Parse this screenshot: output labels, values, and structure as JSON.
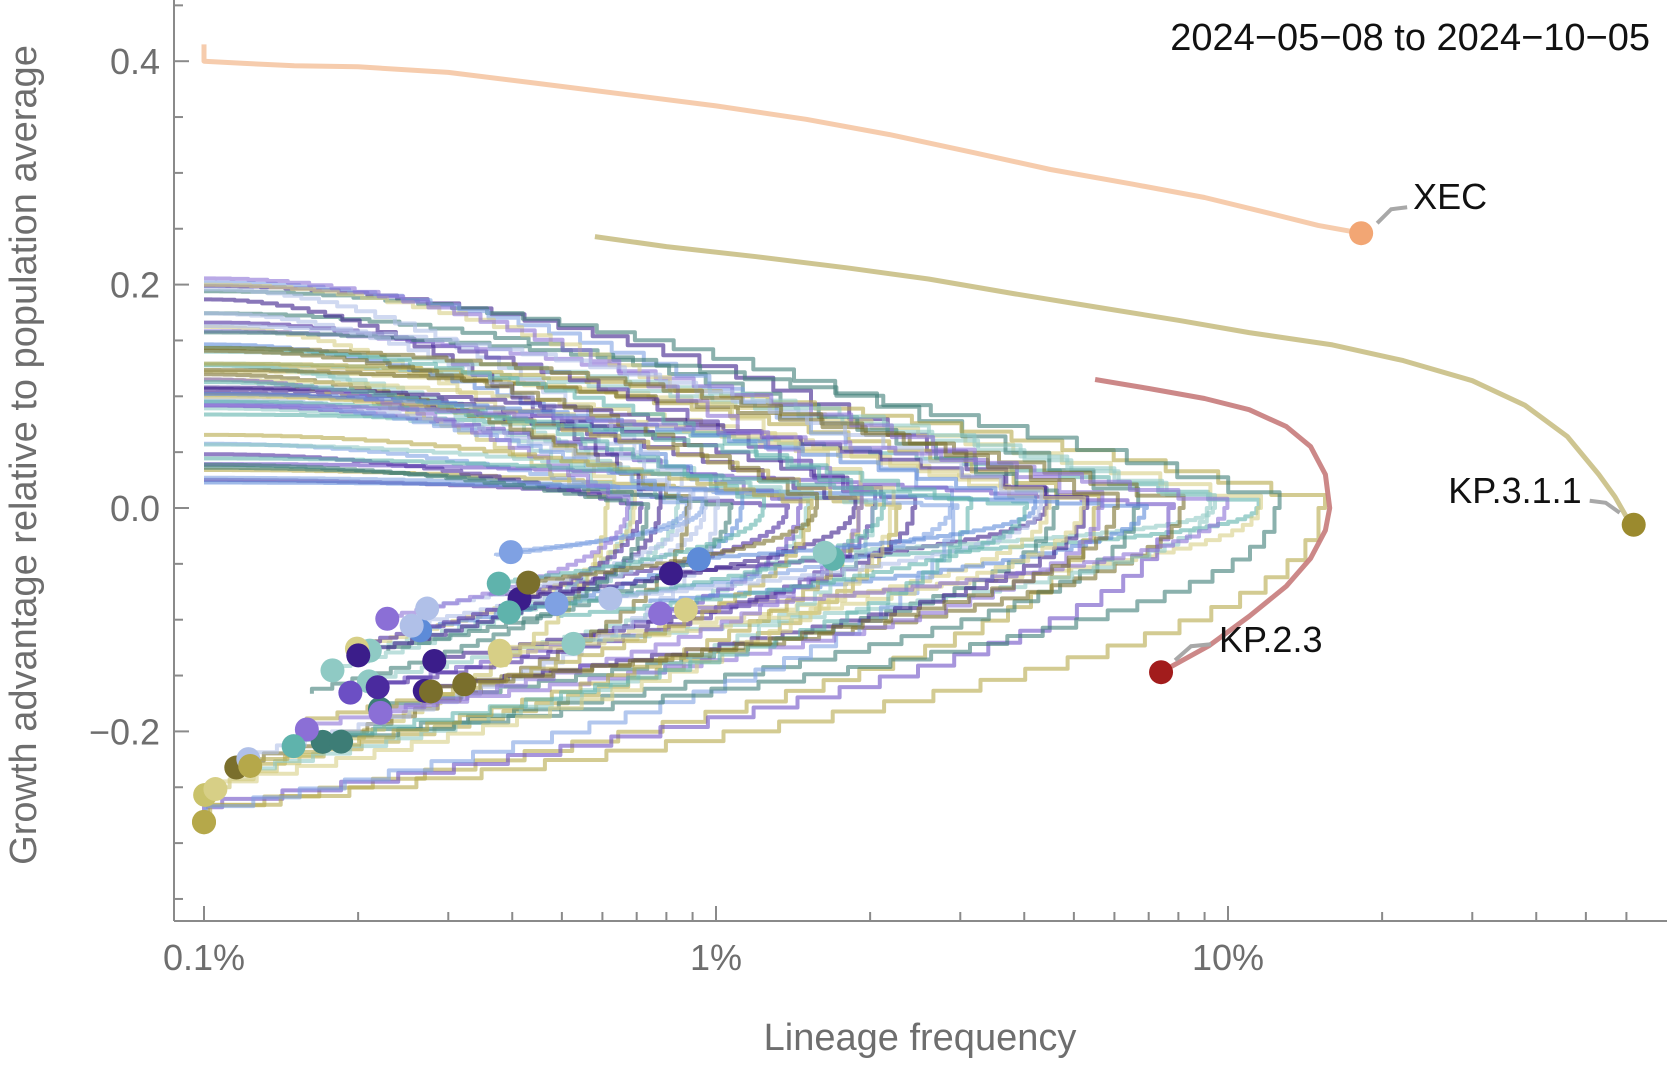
{
  "chart_data": {
    "type": "line",
    "annotation": "2024−05−08 to 2024−10−05",
    "xlabel": "Lineage frequency",
    "ylabel": "Growth advantage relative to population average",
    "x_scale": "log",
    "xlim": [
      0.00085,
      0.9
    ],
    "ylim": [
      -0.37,
      0.455
    ],
    "x_ticks": [
      {
        "value": 0.001,
        "label": "0.1%"
      },
      {
        "value": 0.01,
        "label": "1%"
      },
      {
        "value": 0.1,
        "label": "10%"
      }
    ],
    "y_ticks": [
      {
        "value": 0.4,
        "label": "0.4"
      },
      {
        "value": 0.2,
        "label": "0.2"
      },
      {
        "value": 0.0,
        "label": "0.0"
      },
      {
        "value": -0.2,
        "label": "−0.2"
      }
    ],
    "grid": false,
    "labeled_series": [
      {
        "name": "XEC",
        "color": "#f2a674",
        "label_point": [
          0.182,
          0.246
        ],
        "points": [
          [
            0.001,
            0.415
          ],
          [
            0.001,
            0.4
          ],
          [
            0.0012,
            0.398
          ],
          [
            0.0015,
            0.396
          ],
          [
            0.002,
            0.395
          ],
          [
            0.003,
            0.39
          ],
          [
            0.0045,
            0.38
          ],
          [
            0.007,
            0.369
          ],
          [
            0.01,
            0.36
          ],
          [
            0.015,
            0.348
          ],
          [
            0.022,
            0.334
          ],
          [
            0.032,
            0.318
          ],
          [
            0.045,
            0.303
          ],
          [
            0.065,
            0.29
          ],
          [
            0.09,
            0.278
          ],
          [
            0.12,
            0.264
          ],
          [
            0.15,
            0.253
          ],
          [
            0.182,
            0.246
          ]
        ]
      },
      {
        "name": "KP.3.1.1",
        "color": "#9b8a2e",
        "label_point": [
          0.62,
          -0.015
        ],
        "points": [
          [
            0.0058,
            0.243
          ],
          [
            0.008,
            0.234
          ],
          [
            0.012,
            0.225
          ],
          [
            0.018,
            0.215
          ],
          [
            0.026,
            0.205
          ],
          [
            0.038,
            0.192
          ],
          [
            0.055,
            0.18
          ],
          [
            0.08,
            0.168
          ],
          [
            0.11,
            0.157
          ],
          [
            0.16,
            0.146
          ],
          [
            0.22,
            0.132
          ],
          [
            0.3,
            0.114
          ],
          [
            0.38,
            0.092
          ],
          [
            0.46,
            0.064
          ],
          [
            0.53,
            0.03
          ],
          [
            0.57,
            0.01
          ],
          [
            0.6,
            -0.008
          ],
          [
            0.62,
            -0.015
          ]
        ]
      },
      {
        "name": "KP.2.3",
        "color": "#a21c1c",
        "label_point": [
          0.074,
          -0.147
        ],
        "points": [
          [
            0.055,
            0.115
          ],
          [
            0.07,
            0.107
          ],
          [
            0.09,
            0.098
          ],
          [
            0.11,
            0.088
          ],
          [
            0.13,
            0.073
          ],
          [
            0.145,
            0.055
          ],
          [
            0.155,
            0.03
          ],
          [
            0.158,
            0.0
          ],
          [
            0.155,
            -0.02
          ],
          [
            0.145,
            -0.045
          ],
          [
            0.13,
            -0.07
          ],
          [
            0.11,
            -0.097
          ],
          [
            0.092,
            -0.123
          ],
          [
            0.074,
            -0.147
          ]
        ]
      }
    ]
  }
}
